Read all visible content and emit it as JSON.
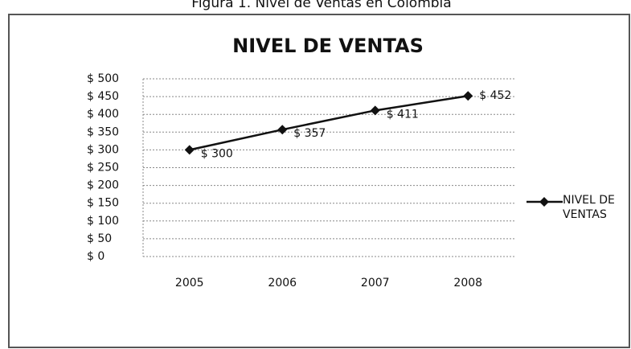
{
  "caption": "Figura 1. Nivel de Ventas en Colombia",
  "chart_data": {
    "type": "line",
    "title": "NIVEL DE VENTAS",
    "categories": [
      "2005",
      "2006",
      "2007",
      "2008"
    ],
    "series": [
      {
        "name": "NIVEL DE VENTAS",
        "color": "#111111",
        "values": [
          300,
          357,
          411,
          452
        ],
        "value_labels": [
          "$ 300",
          "$ 357",
          "$ 411",
          "$ 452"
        ]
      }
    ],
    "ylim": [
      0,
      500
    ],
    "yticks": [
      {
        "value": 0,
        "label": "$ 0"
      },
      {
        "value": 50,
        "label": "$ 50"
      },
      {
        "value": 100,
        "label": "$ 100"
      },
      {
        "value": 150,
        "label": "$ 150"
      },
      {
        "value": 200,
        "label": "$ 200"
      },
      {
        "value": 250,
        "label": "$ 250"
      },
      {
        "value": 300,
        "label": "$ 300"
      },
      {
        "value": 350,
        "label": "$ 350"
      },
      {
        "value": 400,
        "label": "$ 400"
      },
      {
        "value": 450,
        "label": "$ 450"
      },
      {
        "value": 500,
        "label": "$ 500"
      }
    ],
    "grid": true,
    "legend": "right"
  }
}
